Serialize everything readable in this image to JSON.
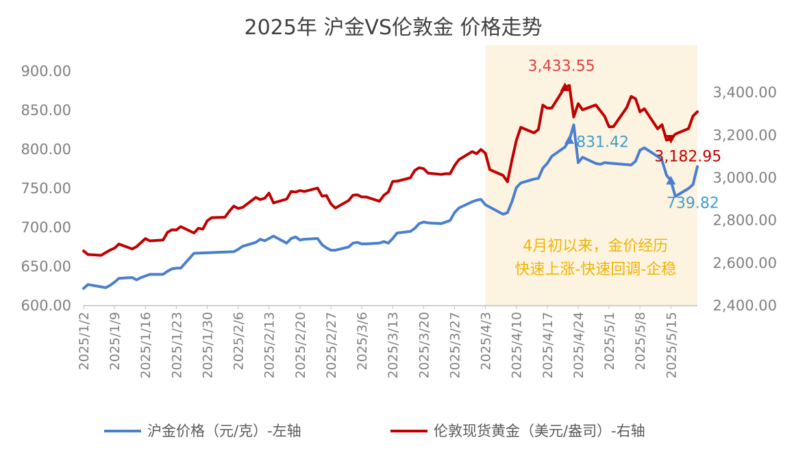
{
  "chart_data": {
    "type": "line",
    "title": "2025年 沪金VS伦敦金 价格走势",
    "y_left": {
      "lim": [
        600,
        900
      ],
      "ticks": [
        "600.00",
        "650.00",
        "700.00",
        "750.00",
        "800.00",
        "850.00",
        "900.00"
      ]
    },
    "y_right": {
      "lim": [
        2400,
        3500
      ],
      "ticks": [
        "2,400.00",
        "2,600.00",
        "2,800.00",
        "3,000.00",
        "3,200.00",
        "3,400.00"
      ]
    },
    "x_ticks": [
      "2025/1/2",
      "2025/1/9",
      "2025/1/16",
      "2025/1/23",
      "2025/1/30",
      "2025/2/6",
      "2025/2/13",
      "2025/2/20",
      "2025/2/27",
      "2025/3/6",
      "2025/3/13",
      "2025/3/20",
      "2025/3/27",
      "2025/4/3",
      "2025/4/10",
      "2025/4/17",
      "2025/4/24",
      "2025/5/1",
      "2025/5/8",
      "2025/5/15"
    ],
    "x_start": "2025-01-02",
    "highlight_from": "2025/4/3",
    "highlight_text": [
      "4月初以来，金价经历",
      "快速上涨-快速回调-企稳"
    ],
    "colors": {
      "shanghai": "#4a7fcf",
      "london": "#c00000",
      "highlight_bg": "#fdf3e1",
      "annot_blue": "#3e9fcc",
      "annot_red": "#e04040",
      "annot_dark_red": "#c00000",
      "highlight_text": "#f0b400"
    },
    "series": [
      {
        "name": "沪金价格（元/克）-左轴",
        "axis": "left",
        "x": [
          "2025-01-02",
          "2025-01-03",
          "2025-01-06",
          "2025-01-07",
          "2025-01-08",
          "2025-01-09",
          "2025-01-10",
          "2025-01-13",
          "2025-01-14",
          "2025-01-15",
          "2025-01-16",
          "2025-01-17",
          "2025-01-20",
          "2025-01-21",
          "2025-01-22",
          "2025-01-23",
          "2025-01-24",
          "2025-01-27",
          "2025-02-05",
          "2025-02-06",
          "2025-02-07",
          "2025-02-10",
          "2025-02-11",
          "2025-02-12",
          "2025-02-13",
          "2025-02-14",
          "2025-02-17",
          "2025-02-18",
          "2025-02-19",
          "2025-02-20",
          "2025-02-21",
          "2025-02-24",
          "2025-02-25",
          "2025-02-26",
          "2025-02-27",
          "2025-02-28",
          "2025-03-03",
          "2025-03-04",
          "2025-03-05",
          "2025-03-06",
          "2025-03-07",
          "2025-03-10",
          "2025-03-11",
          "2025-03-12",
          "2025-03-13",
          "2025-03-14",
          "2025-03-17",
          "2025-03-18",
          "2025-03-19",
          "2025-03-20",
          "2025-03-21",
          "2025-03-24",
          "2025-03-25",
          "2025-03-26",
          "2025-03-27",
          "2025-03-28",
          "2025-03-31",
          "2025-04-01",
          "2025-04-02",
          "2025-04-03",
          "2025-04-07",
          "2025-04-08",
          "2025-04-09",
          "2025-04-10",
          "2025-04-11",
          "2025-04-14",
          "2025-04-15",
          "2025-04-16",
          "2025-04-17",
          "2025-04-18",
          "2025-04-21",
          "2025-04-22",
          "2025-04-23",
          "2025-04-24",
          "2025-04-25",
          "2025-04-28",
          "2025-04-29",
          "2025-04-30",
          "2025-05-06",
          "2025-05-07",
          "2025-05-08",
          "2025-05-09",
          "2025-05-12",
          "2025-05-13",
          "2025-05-14",
          "2025-05-15",
          "2025-05-16",
          "2025-05-19",
          "2025-05-20",
          "2025-05-21"
        ],
        "values": [
          622,
          627,
          624,
          623,
          626,
          630,
          635,
          636,
          633,
          636,
          638,
          640,
          640,
          644,
          647,
          648,
          648,
          667,
          669,
          672,
          676,
          681,
          685,
          683,
          686,
          689,
          680,
          686,
          688,
          684,
          685,
          686,
          678,
          674,
          671,
          671,
          675,
          680,
          681,
          679,
          679,
          680,
          682,
          680,
          686,
          693,
          695,
          699,
          705,
          707,
          706,
          705,
          707,
          709,
          719,
          725,
          733,
          735,
          736,
          729,
          717,
          719,
          733,
          751,
          757,
          762,
          763,
          776,
          782,
          791,
          803,
          812,
          831.42,
          783,
          790,
          782,
          781,
          783,
          780,
          785,
          799,
          802,
          791,
          786,
          767,
          760,
          739.82,
          750,
          755,
          778
        ]
      },
      {
        "name": "伦敦现货黄金（美元/盎司）-右轴",
        "axis": "right",
        "x": [
          "2025-01-02",
          "2025-01-03",
          "2025-01-06",
          "2025-01-07",
          "2025-01-08",
          "2025-01-09",
          "2025-01-10",
          "2025-01-13",
          "2025-01-14",
          "2025-01-15",
          "2025-01-16",
          "2025-01-17",
          "2025-01-20",
          "2025-01-21",
          "2025-01-22",
          "2025-01-23",
          "2025-01-24",
          "2025-01-27",
          "2025-01-28",
          "2025-01-29",
          "2025-01-30",
          "2025-01-31",
          "2025-02-03",
          "2025-02-04",
          "2025-02-05",
          "2025-02-06",
          "2025-02-07",
          "2025-02-10",
          "2025-02-11",
          "2025-02-12",
          "2025-02-13",
          "2025-02-14",
          "2025-02-17",
          "2025-02-18",
          "2025-02-19",
          "2025-02-20",
          "2025-02-21",
          "2025-02-24",
          "2025-02-25",
          "2025-02-26",
          "2025-02-27",
          "2025-02-28",
          "2025-03-03",
          "2025-03-04",
          "2025-03-05",
          "2025-03-06",
          "2025-03-07",
          "2025-03-10",
          "2025-03-11",
          "2025-03-12",
          "2025-03-13",
          "2025-03-14",
          "2025-03-17",
          "2025-03-18",
          "2025-03-19",
          "2025-03-20",
          "2025-03-21",
          "2025-03-24",
          "2025-03-25",
          "2025-03-26",
          "2025-03-27",
          "2025-03-28",
          "2025-03-31",
          "2025-04-01",
          "2025-04-02",
          "2025-04-03",
          "2025-04-04",
          "2025-04-07",
          "2025-04-08",
          "2025-04-09",
          "2025-04-10",
          "2025-04-11",
          "2025-04-14",
          "2025-04-15",
          "2025-04-16",
          "2025-04-17",
          "2025-04-18",
          "2025-04-21",
          "2025-04-22",
          "2025-04-23",
          "2025-04-24",
          "2025-04-25",
          "2025-04-28",
          "2025-04-29",
          "2025-04-30",
          "2025-05-01",
          "2025-05-02",
          "2025-05-05",
          "2025-05-06",
          "2025-05-07",
          "2025-05-08",
          "2025-05-09",
          "2025-05-12",
          "2025-05-13",
          "2025-05-14",
          "2025-05-15",
          "2025-05-16",
          "2025-05-19",
          "2025-05-20",
          "2025-05-21"
        ],
        "values": [
          2657,
          2640,
          2636,
          2649,
          2661,
          2670,
          2689,
          2666,
          2677,
          2696,
          2715,
          2704,
          2708,
          2744,
          2756,
          2755,
          2771,
          2741,
          2763,
          2759,
          2798,
          2813,
          2815,
          2843,
          2867,
          2856,
          2861,
          2908,
          2898,
          2904,
          2928,
          2882,
          2900,
          2936,
          2933,
          2940,
          2936,
          2952,
          2914,
          2917,
          2878,
          2858,
          2893,
          2918,
          2920,
          2910,
          2910,
          2890,
          2918,
          2933,
          2983,
          2984,
          3000,
          3035,
          3047,
          3043,
          3022,
          3016,
          3019,
          3019,
          3057,
          3085,
          3123,
          3113,
          3133,
          3115,
          3038,
          3011,
          2982,
          3083,
          3175,
          3237,
          3211,
          3227,
          3341,
          3327,
          3327,
          3425,
          3433.55,
          3285,
          3348,
          3319,
          3342,
          3315,
          3289,
          3239,
          3240,
          3330,
          3382,
          3371,
          3310,
          3324,
          3230,
          3249,
          3177,
          3182.95,
          3205,
          3231,
          3290,
          3310
        ]
      }
    ],
    "annotations": [
      {
        "series": 0,
        "x": "2025-04-22",
        "text": "831.42"
      },
      {
        "series": 0,
        "x": "2025-05-15",
        "text": "739.82"
      },
      {
        "series": 1,
        "x": "2025-04-21",
        "text": "3,433.55"
      },
      {
        "series": 1,
        "x": "2025-05-15",
        "text": "3,182.95"
      }
    ]
  }
}
